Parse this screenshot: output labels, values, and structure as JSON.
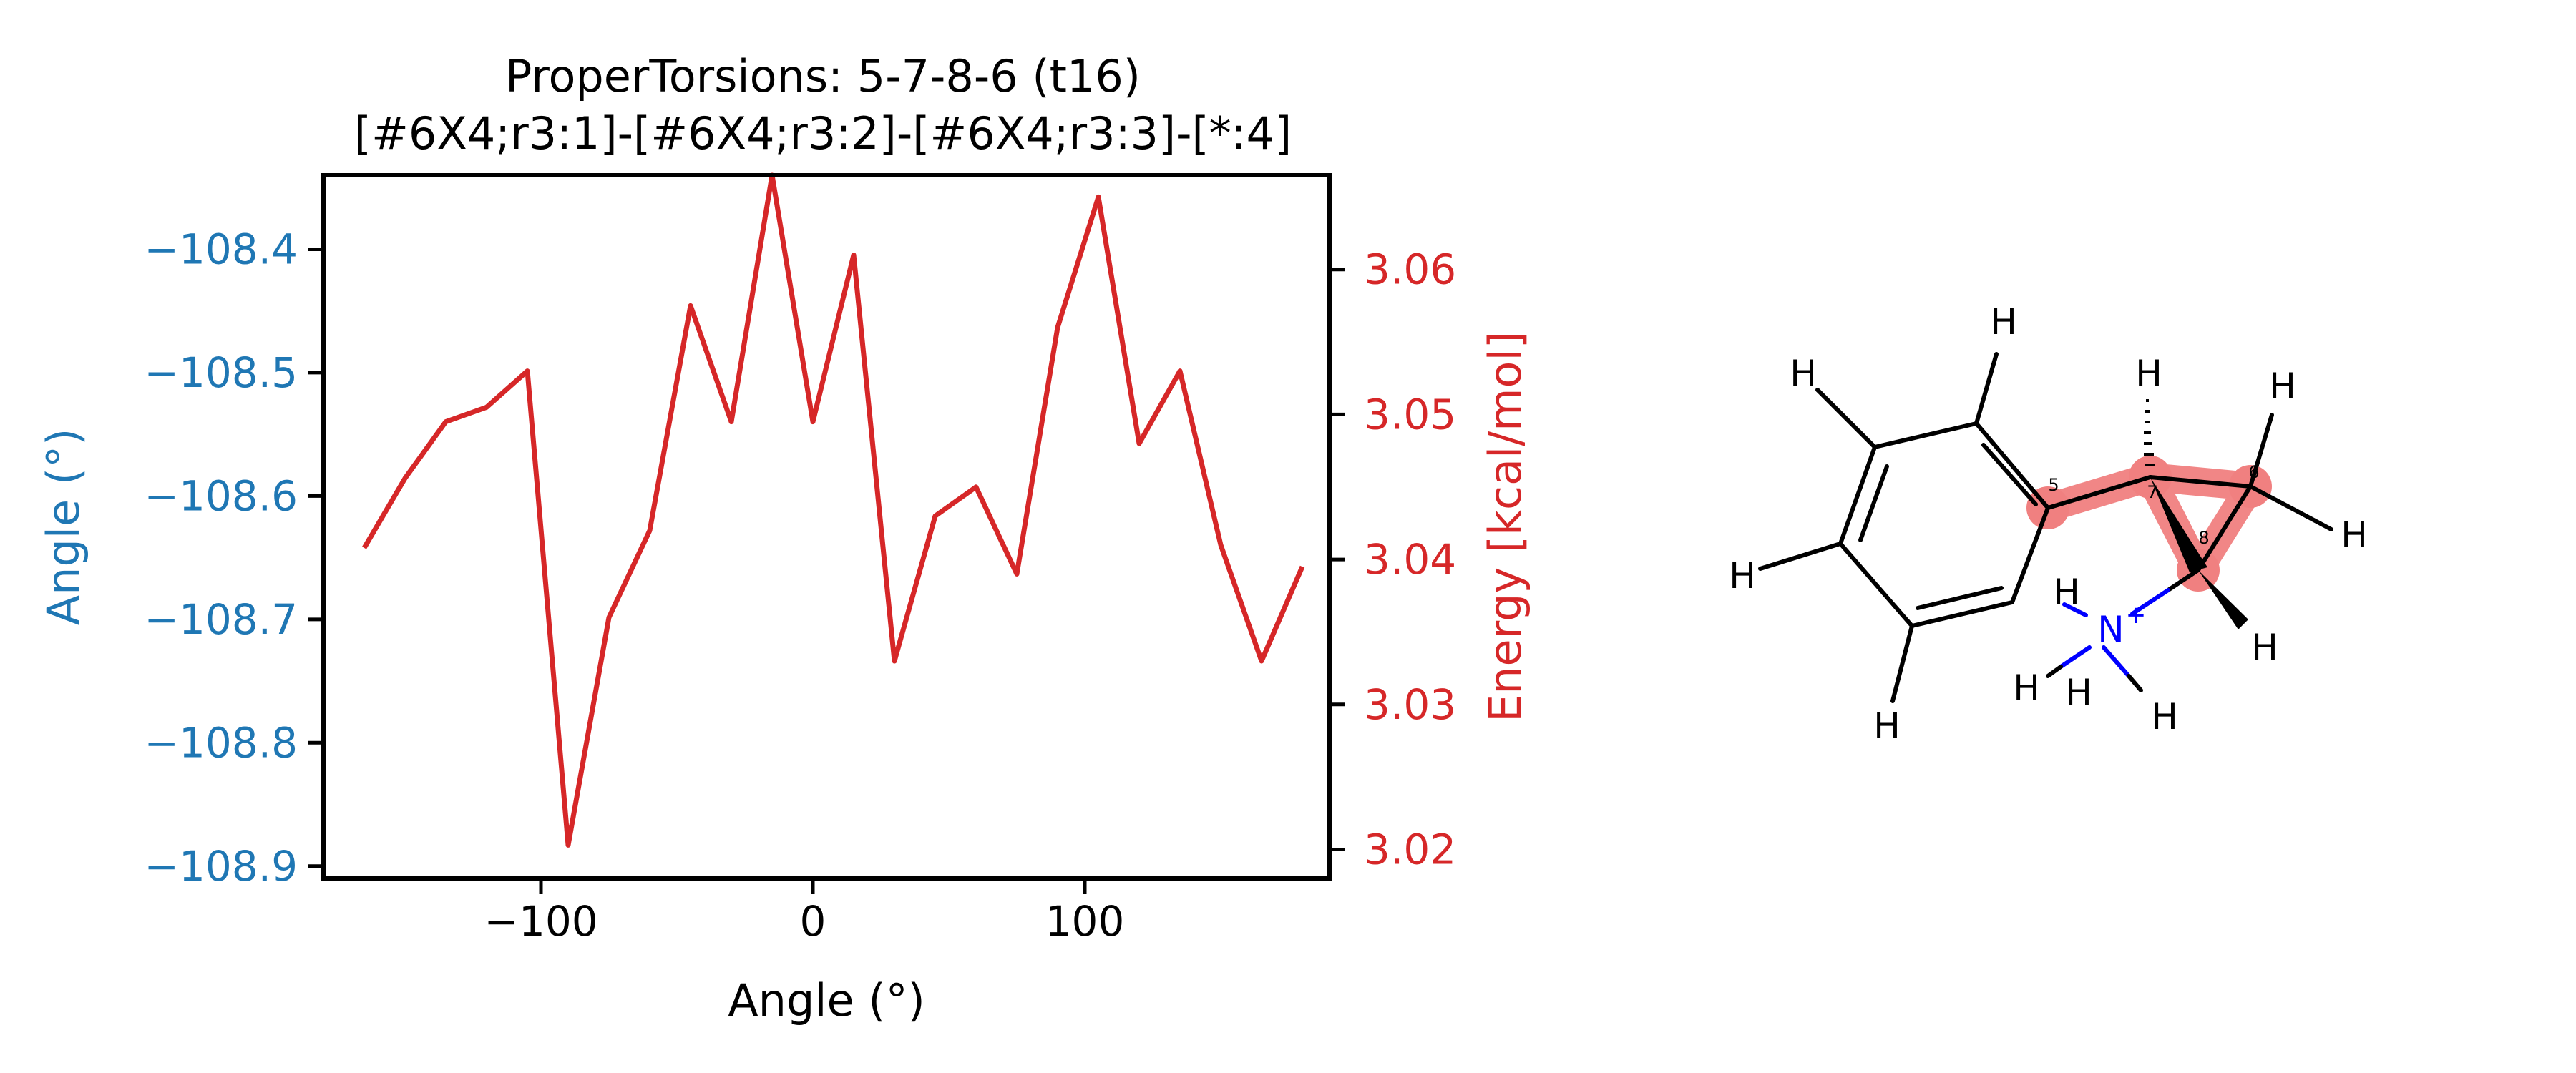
{
  "chart_data": {
    "type": "line",
    "title": "ProperTorsions: 5-7-8-6 (t16)",
    "subtitle": "[#6X4;r3:1]-[#6X4;r3:2]-[#6X4;r3:3]-[*:4]",
    "xlabel": "Angle (°)",
    "ylabel_left": "Angle (°)",
    "ylabel_right": "Energy [kcal/mol]",
    "xlim": [
      -180,
      190
    ],
    "ylim_left": [
      -108.91,
      -108.34
    ],
    "ylim_right": [
      3.018,
      3.0665
    ],
    "x_ticks": [
      -100,
      0,
      100
    ],
    "x_tick_labels": [
      "−100",
      "0",
      "100"
    ],
    "y_left_ticks": [
      -108.4,
      -108.5,
      -108.6,
      -108.7,
      -108.8,
      -108.9
    ],
    "y_left_tick_labels": [
      "−108.4",
      "−108.5",
      "−108.6",
      "−108.7",
      "−108.8",
      "−108.9"
    ],
    "y_right_ticks": [
      3.02,
      3.03,
      3.04,
      3.05,
      3.06
    ],
    "y_right_tick_labels": [
      "3.02",
      "3.03",
      "3.04",
      "3.05",
      "3.06"
    ],
    "grid": false,
    "colors": {
      "left_axis": "#1f77b4",
      "right_axis": "#d62728",
      "line": "#d62728"
    },
    "series": [
      {
        "axis": "right",
        "x": [
          -165,
          -150,
          -135,
          -120,
          -105,
          -90,
          -75,
          -60,
          -45,
          -30,
          -15,
          0,
          15,
          30,
          45,
          60,
          75,
          90,
          105,
          120,
          135,
          150,
          165,
          180
        ],
        "values": [
          3.0408,
          3.0456,
          3.0495,
          3.0505,
          3.053,
          3.0203,
          3.036,
          3.042,
          3.0575,
          3.0495,
          3.0665,
          3.0495,
          3.061,
          3.033,
          3.043,
          3.045,
          3.039,
          3.056,
          3.065,
          3.048,
          3.053,
          3.041,
          3.033,
          3.0395
        ]
      }
    ]
  },
  "molecule": {
    "atom_labels": {
      "h_top_left": "H",
      "h_top": "H",
      "h_left": "H",
      "h_bottom": "H",
      "h_c7": "H",
      "h_c6_top": "H",
      "h_c6_right": "H",
      "h_c8": "H",
      "h_n_1": "H",
      "h_n_2": "H",
      "h_n_3": "H",
      "h_n_4": "H",
      "nitrogen": "N",
      "charge": "+"
    },
    "atom_indices": {
      "c5": "5",
      "c6": "6",
      "c7": "7",
      "c8": "8"
    },
    "colors": {
      "bond": "#000000",
      "nitrogen": "#0000ff",
      "highlight": "#f08080"
    }
  }
}
